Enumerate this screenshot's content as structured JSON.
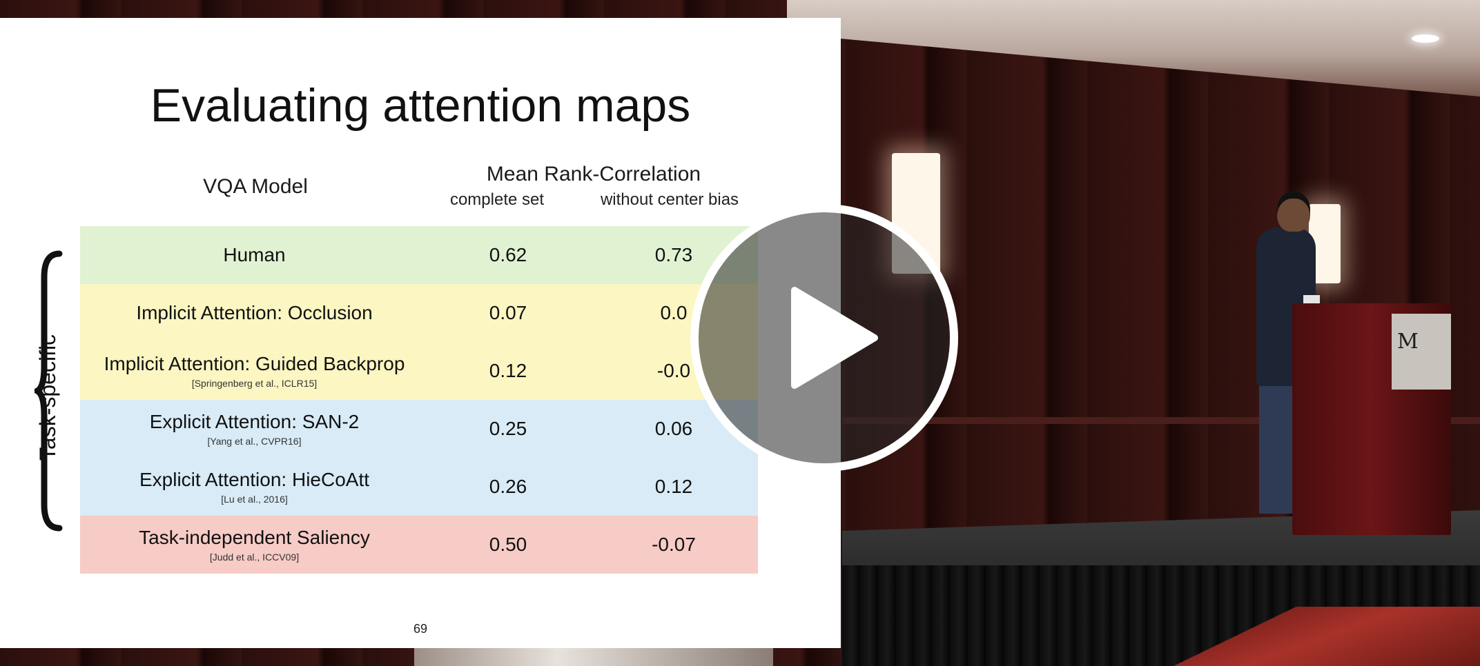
{
  "slide": {
    "title": "Evaluating attention maps",
    "headers": {
      "model": "VQA Model",
      "metric": "Mean Rank-Correlation",
      "sub_a": "complete set",
      "sub_b": "without center bias"
    },
    "brace_label": "Task-specific",
    "rows": [
      {
        "label": "Human",
        "cite": "",
        "a": "0.62",
        "b": "0.73",
        "color": "#e1f2d3"
      },
      {
        "label": "Implicit Attention: Occlusion",
        "cite": "",
        "a": "0.07",
        "b": "0.0",
        "color": "#fbf6c2"
      },
      {
        "label": "Implicit Attention: Guided Backprop",
        "cite": "[Springenberg et al., ICLR15]",
        "a": "0.12",
        "b": "-0.0",
        "color": "#fbf6c2"
      },
      {
        "label": "Explicit Attention: SAN-2",
        "cite": "[Yang et al., CVPR16]",
        "a": "0.25",
        "b": "0.06",
        "color": "#d8ebf7"
      },
      {
        "label": "Explicit Attention: HieCoAtt",
        "cite": "[Lu et al., 2016]",
        "a": "0.26",
        "b": "0.12",
        "color": "#d8ebf7"
      },
      {
        "label": "Task-independent Saliency",
        "cite": "[Judd et al., ICCV09]",
        "a": "0.50",
        "b": "-0.07",
        "color": "#f7cbc6"
      }
    ],
    "page_number": "69"
  },
  "player": {
    "play_icon": "play-icon"
  }
}
